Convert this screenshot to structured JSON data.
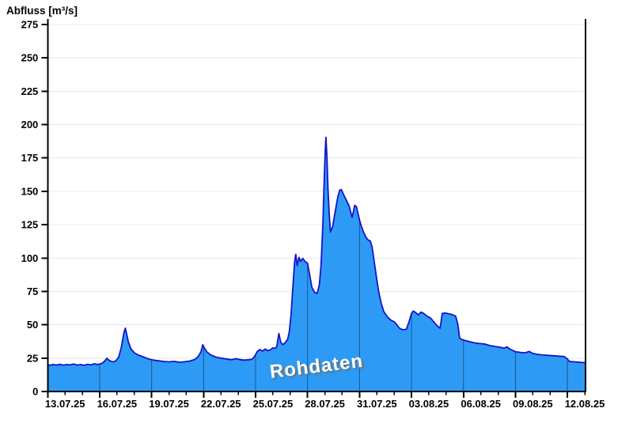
{
  "title": "Abfluss [m³/s]",
  "watermark": "Rohdaten",
  "colors": {
    "area_fill": "#2D9BF5",
    "area_stroke": "#1414C8",
    "grid_horizontal": "#E8E8E8",
    "grid_vertical_in_area": "rgba(0,0,30,0.45)",
    "axis": "#000000",
    "label_text": "#000000",
    "watermark_text": "#FFFFFF",
    "watermark_shadow": "#6E6E6E"
  },
  "chart_data": {
    "type": "area",
    "title": "Abfluss [m³/s]",
    "ylabel": "Abfluss [m³/s]",
    "xlabel": "",
    "ylim": [
      0,
      275
    ],
    "y_ticks": [
      0,
      25,
      50,
      75,
      100,
      125,
      150,
      175,
      200,
      225,
      250,
      275
    ],
    "x_range_days": [
      0,
      31.04
    ],
    "x_major_ticks": [
      {
        "day": 0,
        "label": "13.07.25"
      },
      {
        "day": 3,
        "label": "16.07.25"
      },
      {
        "day": 6,
        "label": "19.07.25"
      },
      {
        "day": 9,
        "label": "22.07.25"
      },
      {
        "day": 12,
        "label": "25.07.25"
      },
      {
        "day": 15,
        "label": "28.07.25"
      },
      {
        "day": 18,
        "label": "31.07.25"
      },
      {
        "day": 21,
        "label": "03.08.25"
      },
      {
        "day": 24,
        "label": "06.08.25"
      },
      {
        "day": 27,
        "label": "09.08.25"
      },
      {
        "day": 30,
        "label": "12.08.25"
      }
    ],
    "x_minor_tick_interval_days": 1,
    "grid": "horizontal-light, vertical-major-visible-inside-area",
    "legend": "none",
    "series": [
      {
        "name": "Rohdaten",
        "unit": "m³/s",
        "points": [
          [
            0,
            20
          ],
          [
            0.15,
            19.6
          ],
          [
            0.3,
            20.3
          ],
          [
            0.5,
            19.8
          ],
          [
            0.7,
            20.4
          ],
          [
            0.9,
            19.7
          ],
          [
            1.1,
            20.2
          ],
          [
            1.3,
            19.9
          ],
          [
            1.5,
            20.6
          ],
          [
            1.7,
            19.8
          ],
          [
            1.9,
            20.2
          ],
          [
            2.1,
            19.6
          ],
          [
            2.3,
            20.4
          ],
          [
            2.5,
            19.9
          ],
          [
            2.7,
            20.8
          ],
          [
            2.85,
            20.2
          ],
          [
            3.0,
            20.6
          ],
          [
            3.15,
            21.2
          ],
          [
            3.3,
            23
          ],
          [
            3.42,
            25
          ],
          [
            3.52,
            23.5
          ],
          [
            3.65,
            22.6
          ],
          [
            3.8,
            22.2
          ],
          [
            3.95,
            23.2
          ],
          [
            4.1,
            26
          ],
          [
            4.25,
            33
          ],
          [
            4.4,
            44
          ],
          [
            4.48,
            47.5
          ],
          [
            4.56,
            43
          ],
          [
            4.65,
            37.5
          ],
          [
            4.8,
            32
          ],
          [
            5.0,
            29
          ],
          [
            5.2,
            27.5
          ],
          [
            5.5,
            26
          ],
          [
            5.8,
            24.5
          ],
          [
            6.1,
            23.5
          ],
          [
            6.4,
            23
          ],
          [
            6.7,
            22.5
          ],
          [
            7.0,
            22.2
          ],
          [
            7.3,
            22.6
          ],
          [
            7.6,
            21.9
          ],
          [
            7.9,
            22.3
          ],
          [
            8.2,
            22.8
          ],
          [
            8.5,
            24
          ],
          [
            8.7,
            26.5
          ],
          [
            8.85,
            30
          ],
          [
            8.95,
            35
          ],
          [
            9.05,
            32.5
          ],
          [
            9.2,
            29.5
          ],
          [
            9.4,
            27.5
          ],
          [
            9.7,
            25.8
          ],
          [
            10.0,
            25
          ],
          [
            10.3,
            24.4
          ],
          [
            10.6,
            23.8
          ],
          [
            10.9,
            24.6
          ],
          [
            11.1,
            23.9
          ],
          [
            11.35,
            23.5
          ],
          [
            11.6,
            23.8
          ],
          [
            11.8,
            24.2
          ],
          [
            11.95,
            26.5
          ],
          [
            12.1,
            30
          ],
          [
            12.25,
            31.5
          ],
          [
            12.4,
            30.3
          ],
          [
            12.55,
            31.8
          ],
          [
            12.7,
            30.6
          ],
          [
            12.85,
            31.2
          ],
          [
            13.0,
            32.8
          ],
          [
            13.12,
            32.2
          ],
          [
            13.22,
            33.5
          ],
          [
            13.34,
            43.5
          ],
          [
            13.45,
            37
          ],
          [
            13.57,
            35
          ],
          [
            13.7,
            36.5
          ],
          [
            13.85,
            39
          ],
          [
            13.95,
            45
          ],
          [
            14.05,
            58
          ],
          [
            14.15,
            78
          ],
          [
            14.25,
            97
          ],
          [
            14.32,
            102.8
          ],
          [
            14.4,
            94.5
          ],
          [
            14.5,
            100.5
          ],
          [
            14.6,
            97.5
          ],
          [
            14.72,
            99.8
          ],
          [
            14.85,
            97.5
          ],
          [
            15.0,
            96
          ],
          [
            15.1,
            89
          ],
          [
            15.25,
            78
          ],
          [
            15.42,
            74
          ],
          [
            15.55,
            73.5
          ],
          [
            15.68,
            80
          ],
          [
            15.78,
            95
          ],
          [
            15.88,
            125
          ],
          [
            15.96,
            158
          ],
          [
            16.02,
            180
          ],
          [
            16.06,
            190.5
          ],
          [
            16.12,
            176
          ],
          [
            16.18,
            152
          ],
          [
            16.25,
            133
          ],
          [
            16.32,
            119.5
          ],
          [
            16.45,
            124
          ],
          [
            16.6,
            135
          ],
          [
            16.75,
            146
          ],
          [
            16.85,
            150.8
          ],
          [
            16.95,
            151.3
          ],
          [
            17.1,
            147
          ],
          [
            17.25,
            143
          ],
          [
            17.4,
            139
          ],
          [
            17.5,
            134
          ],
          [
            17.57,
            130.5
          ],
          [
            17.65,
            135
          ],
          [
            17.72,
            139.5
          ],
          [
            17.82,
            138.5
          ],
          [
            17.92,
            133
          ],
          [
            18.0,
            128.5
          ],
          [
            18.1,
            124
          ],
          [
            18.2,
            120.5
          ],
          [
            18.35,
            116
          ],
          [
            18.5,
            113.5
          ],
          [
            18.62,
            112.8
          ],
          [
            18.72,
            108.5
          ],
          [
            18.85,
            97
          ],
          [
            18.95,
            88
          ],
          [
            19.1,
            75
          ],
          [
            19.25,
            66
          ],
          [
            19.4,
            60
          ],
          [
            19.6,
            56
          ],
          [
            19.8,
            53.5
          ],
          [
            20.0,
            52.3
          ],
          [
            20.15,
            50
          ],
          [
            20.3,
            47.5
          ],
          [
            20.5,
            46.3
          ],
          [
            20.7,
            46.6
          ],
          [
            20.85,
            52
          ],
          [
            21.0,
            58.5
          ],
          [
            21.1,
            60.3
          ],
          [
            21.25,
            59
          ],
          [
            21.4,
            57.5
          ],
          [
            21.55,
            59.5
          ],
          [
            21.7,
            58.5
          ],
          [
            21.9,
            56.5
          ],
          [
            22.1,
            55
          ],
          [
            22.3,
            52
          ],
          [
            22.5,
            49
          ],
          [
            22.65,
            47.5
          ],
          [
            22.78,
            58.5
          ],
          [
            22.95,
            58.8
          ],
          [
            23.15,
            58.2
          ],
          [
            23.35,
            57.6
          ],
          [
            23.55,
            56.5
          ],
          [
            23.68,
            50
          ],
          [
            23.78,
            40
          ],
          [
            23.9,
            39
          ],
          [
            24.05,
            38.4
          ],
          [
            24.3,
            37.5
          ],
          [
            24.6,
            36.5
          ],
          [
            24.9,
            36
          ],
          [
            25.2,
            35.6
          ],
          [
            25.5,
            34.5
          ],
          [
            25.8,
            33.8
          ],
          [
            26.1,
            33.2
          ],
          [
            26.35,
            32.5
          ],
          [
            26.5,
            33.5
          ],
          [
            26.65,
            32
          ],
          [
            27.0,
            29.8
          ],
          [
            27.3,
            29.3
          ],
          [
            27.55,
            29
          ],
          [
            27.8,
            30
          ],
          [
            28.0,
            28.5
          ],
          [
            28.3,
            27.8
          ],
          [
            28.6,
            27.3
          ],
          [
            28.9,
            27.1
          ],
          [
            29.2,
            26.8
          ],
          [
            29.5,
            26.5
          ],
          [
            29.8,
            26.2
          ],
          [
            30.0,
            24.5
          ],
          [
            30.1,
            22.6
          ],
          [
            30.4,
            22.2
          ],
          [
            30.7,
            21.9
          ],
          [
            31.04,
            21.6
          ]
        ]
      }
    ]
  }
}
